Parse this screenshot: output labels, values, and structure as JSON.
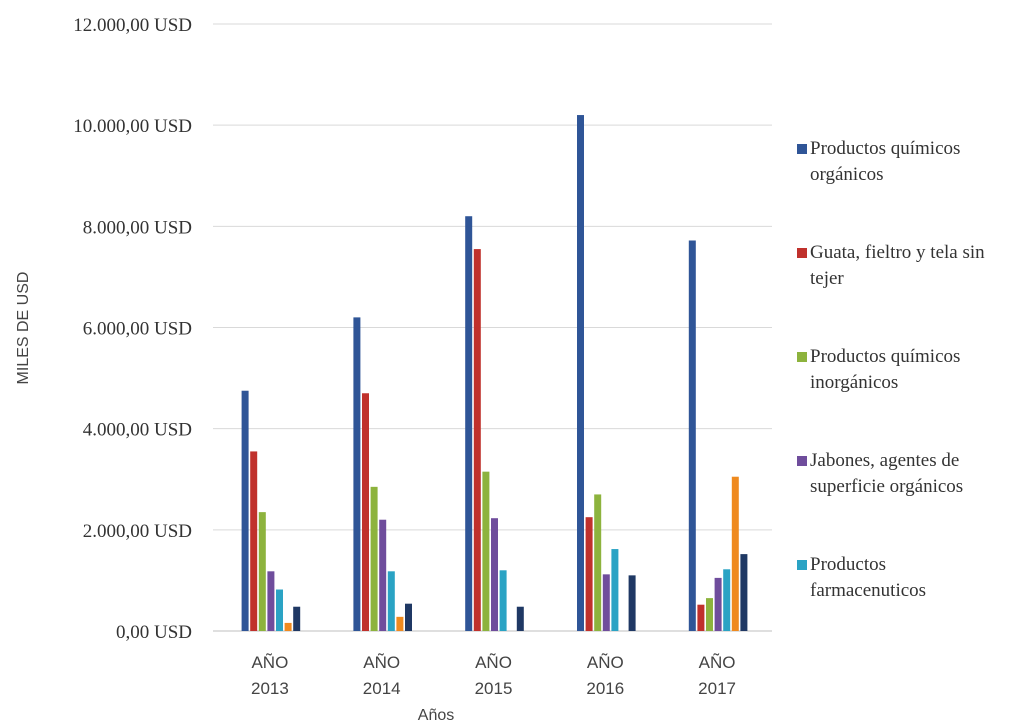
{
  "chart_data": {
    "type": "bar",
    "title": "",
    "xlabel": "Años",
    "ylabel": "MILES DE USD",
    "ylim": [
      0,
      12000
    ],
    "yticks": [
      "0,00 USD",
      "2.000,00 USD",
      "4.000,00 USD",
      "6.000,00 USD",
      "8.000,00 USD",
      "10.000,00 USD",
      "12.000,00 USD"
    ],
    "categories": [
      [
        "AÑO",
        "2013"
      ],
      [
        "AÑO",
        "2014"
      ],
      [
        "AÑO",
        "2015"
      ],
      [
        "AÑO",
        "2016"
      ],
      [
        "AÑO",
        "2017"
      ]
    ],
    "grid": true,
    "legend_position": "right",
    "series": [
      {
        "name": "Productos químicos orgánicos",
        "color": "#2f5597",
        "values": [
          4750,
          6200,
          8200,
          10200,
          7720
        ]
      },
      {
        "name": "Guata, fieltro y tela sin tejer",
        "color": "#c0312c",
        "values": [
          3550,
          4700,
          7550,
          2250,
          520
        ]
      },
      {
        "name": "Productos químicos inorgánicos",
        "color": "#8db33d",
        "values": [
          2350,
          2850,
          3150,
          2700,
          650
        ]
      },
      {
        "name": "Jabones, agentes de superficie orgánicos",
        "color": "#6f4d9c",
        "values": [
          1180,
          2200,
          2230,
          1120,
          1050
        ]
      },
      {
        "name": "Productos farmacenuticos",
        "color": "#2aa3c4",
        "values": [
          820,
          1180,
          1200,
          1620,
          1220
        ]
      },
      {
        "name": "",
        "color": "#ef8a1f",
        "values": [
          160,
          280,
          0,
          0,
          3050
        ]
      },
      {
        "name": "",
        "color": "#1f3864",
        "values": [
          480,
          540,
          480,
          1100,
          1520
        ]
      }
    ]
  }
}
